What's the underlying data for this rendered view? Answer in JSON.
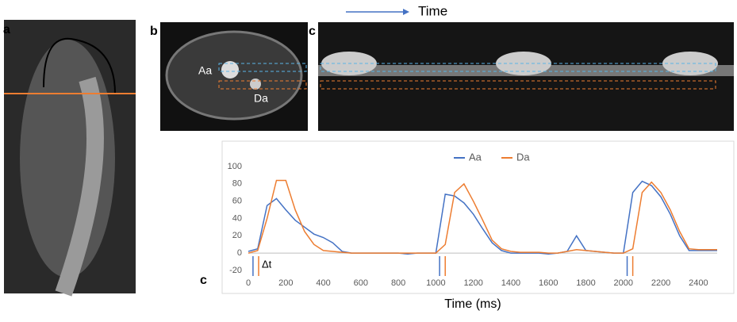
{
  "figure": {
    "panel_labels": [
      "a",
      "b",
      "c",
      "c"
    ],
    "time_arrow": "Time",
    "image_labels": [
      "Aa",
      "Da"
    ]
  },
  "chart_data": {
    "type": "line",
    "x": [
      0,
      50,
      100,
      150,
      200,
      250,
      300,
      350,
      400,
      450,
      500,
      550,
      600,
      650,
      700,
      750,
      800,
      850,
      900,
      950,
      1000,
      1050,
      1100,
      1150,
      1200,
      1250,
      1300,
      1350,
      1400,
      1450,
      1500,
      1550,
      1600,
      1650,
      1700,
      1750,
      1800,
      1850,
      1900,
      1950,
      2000,
      2050,
      2100,
      2150,
      2200,
      2250,
      2300,
      2350,
      2400,
      2450,
      2500
    ],
    "series": [
      {
        "name": "Aa",
        "color": "#4472c4",
        "onsets": [
          25,
          1020,
          2020
        ],
        "values": [
          2,
          5,
          55,
          63,
          50,
          38,
          30,
          22,
          18,
          12,
          2,
          0,
          0,
          0,
          0,
          0,
          0,
          -1,
          0,
          0,
          0,
          68,
          66,
          58,
          45,
          28,
          12,
          3,
          0,
          0,
          0,
          0,
          -1,
          0,
          2,
          20,
          3,
          2,
          1,
          0,
          0,
          70,
          83,
          78,
          65,
          45,
          20,
          3,
          3,
          3,
          3
        ]
      },
      {
        "name": "Da",
        "color": "#ed7d31",
        "onsets": [
          55,
          1050,
          2050
        ],
        "values": [
          0,
          3,
          40,
          84,
          84,
          50,
          25,
          10,
          3,
          2,
          1,
          0,
          0,
          0,
          0,
          0,
          0,
          0,
          0,
          0,
          0,
          10,
          70,
          80,
          60,
          38,
          15,
          5,
          2,
          1,
          1,
          1,
          0,
          0,
          2,
          4,
          3,
          2,
          1,
          0,
          0,
          5,
          70,
          82,
          70,
          50,
          25,
          5,
          4,
          4,
          4
        ]
      }
    ],
    "annotation": "Δt",
    "xlabel": "Time (ms)",
    "xlim": [
      0,
      2500
    ],
    "ylim": [
      -20,
      100
    ],
    "xticks": [
      0,
      200,
      400,
      600,
      800,
      1000,
      1200,
      1400,
      1600,
      1800,
      2000,
      2200,
      2400
    ],
    "yticks": [
      -20,
      0,
      20,
      40,
      60,
      80,
      100
    ],
    "legend": "top"
  }
}
